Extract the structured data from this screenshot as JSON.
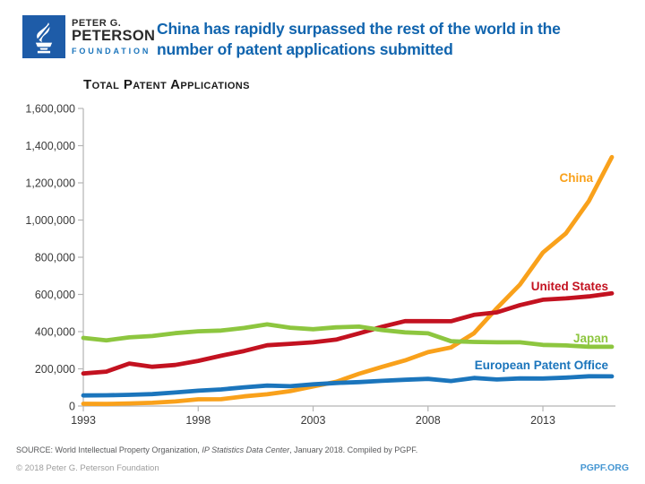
{
  "header": {
    "logo": {
      "line1": "PETER G.",
      "line2": "PETERSON",
      "line3": "FOUNDATION"
    },
    "title_lines": [
      "China has rapidly surpassed the rest of the world in the",
      "number of patent applications submitted"
    ]
  },
  "chart_data": {
    "type": "line",
    "title": "Total Patent Applications",
    "xlabel": "",
    "ylabel": "",
    "x": [
      1993,
      1994,
      1995,
      1996,
      1997,
      1998,
      1999,
      2000,
      2001,
      2002,
      2003,
      2004,
      2005,
      2006,
      2007,
      2008,
      2009,
      2010,
      2011,
      2012,
      2013,
      2014,
      2015,
      2016
    ],
    "series": [
      {
        "name": "China",
        "color": "#F9A11B",
        "values": [
          12084,
          11191,
          14067,
          17313,
          24729,
          35960,
          36694,
          51906,
          63204,
          80232,
          105318,
          130133,
          173327,
          210490,
          245161,
          289838,
          314604,
          391177,
          526412,
          652777,
          825136,
          928177,
          1101864,
          1338503
        ]
      },
      {
        "name": "United States",
        "color": "#C31220",
        "values": [
          174743,
          185087,
          228238,
          211013,
          220773,
          243062,
          270187,
          295926,
          326508,
          334445,
          342441,
          356943,
          390733,
          425966,
          456154,
          456321,
          456106,
          490226,
          503582,
          542815,
          571612,
          578802,
          589410,
          605571
        ]
      },
      {
        "name": "Japan",
        "color": "#8DC63F",
        "values": [
          366486,
          353301,
          369215,
          376615,
          391572,
          401932,
          405655,
          419543,
          439175,
          421044,
          413092,
          423081,
          427078,
          408674,
          396291,
          391002,
          348596,
          344598,
          342610,
          342796,
          328436,
          325989,
          318721,
          318381
        ]
      },
      {
        "name": "European Patent Office",
        "color": "#1B75BC",
        "values": [
          56769,
          57904,
          60071,
          63965,
          72903,
          82287,
          89193,
          100704,
          110114,
          106347,
          116613,
          123705,
          128679,
          135183,
          141266,
          146265,
          134542,
          150961,
          142793,
          148562,
          147987,
          152662,
          160028,
          159358
        ]
      }
    ],
    "xlim": [
      1993,
      2016
    ],
    "ylim": [
      0,
      1600000
    ],
    "x_ticks": [
      1993,
      1998,
      2003,
      2008,
      2013
    ],
    "y_tick_step": 200000,
    "grid": false,
    "legend": "inline-labels-right"
  },
  "footer": {
    "source_prefix": "SOURCE: World Intellectual Property Organization, ",
    "source_italic": "IP Statistics Data Center",
    "source_suffix": ", January 2018. Compiled by PGPF.",
    "copyright": "© 2018 Peter G. Peterson Foundation",
    "site": "PGPF.ORG"
  }
}
